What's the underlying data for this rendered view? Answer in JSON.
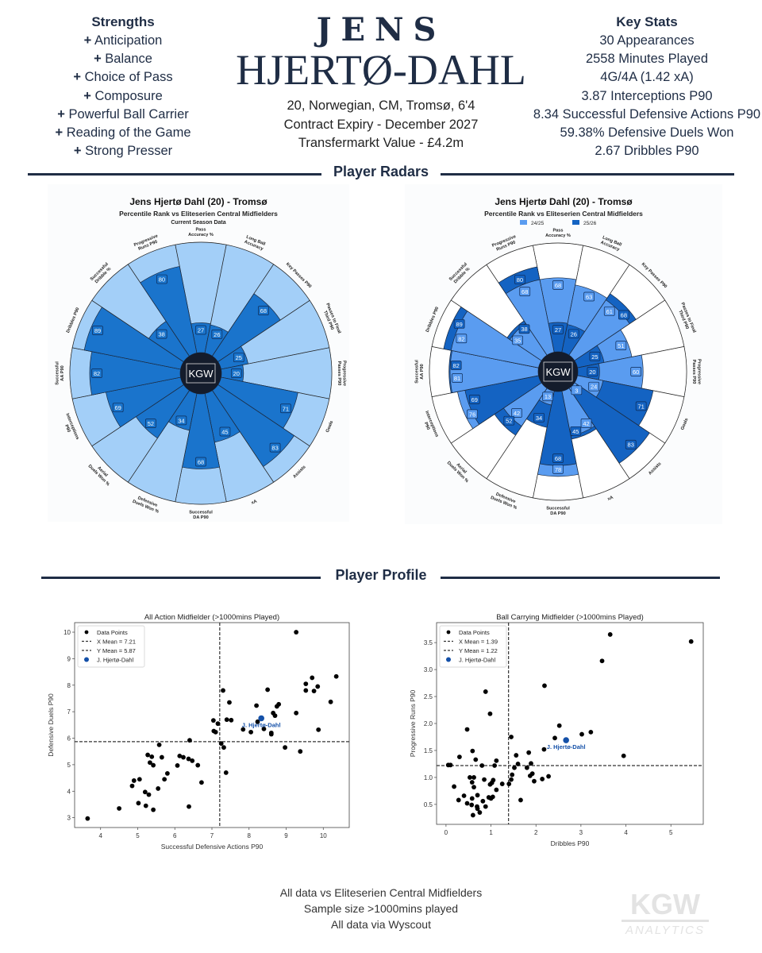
{
  "strengths": {
    "title": "Strengths",
    "items": [
      "Anticipation",
      "Balance",
      "Choice of Pass",
      "Composure",
      "Powerful Ball Carrier",
      "Reading of the Game",
      "Strong Presser"
    ],
    "prefix": "+"
  },
  "key_stats": {
    "title": "Key Stats",
    "items": [
      "30 Appearances",
      "2558 Minutes Played",
      "4G/4A (1.42 xA)",
      "3.87 Interceptions P90",
      "8.34 Successful Defensive Actions P90",
      "59.38% Defensive Duels Won",
      "2.67 Dribbles P90"
    ]
  },
  "player": {
    "first": "JENS",
    "last": "HJERTØ-DAHL",
    "info": [
      "20, Norwegian, CM, Tromsø, 6'4",
      "Contract Expiry - December 2027",
      "Transfermarkt Value - £4.2m"
    ]
  },
  "sections": {
    "radars": "Player Radars",
    "profile": "Player Profile"
  },
  "footer": [
    "All data vs Eliteserien Central Midfielders",
    "Sample size >1000mins played",
    "All data via Wyscout"
  ],
  "watermark": {
    "main": "KGW",
    "sub": "ANALYTICS"
  },
  "colors": {
    "navy": "#1f2d45",
    "radar_bg": "#a3cff8",
    "radar_dark": "#1a74cc",
    "season_2425": "#5a9cf0",
    "season_2526": "#1463c2",
    "player_dot": "#1450a8"
  },
  "chart_data": [
    {
      "type": "radar",
      "title": "Jens Hjertø Dahl (20) - Tromsø",
      "subtitle": "Percentile Rank vs Eliteserien Central Midfielders",
      "subtitle2": "Current Season Data",
      "logo": "KGW",
      "categories": [
        "Pass Accuracy %",
        "Long Ball Accuracy",
        "Key Passes P90",
        "Passes to Final Third P90",
        "Progressive Passes P90",
        "Goals",
        "Assists",
        "xA",
        "Successful DA P90",
        "Defensive Duels Won %",
        "Aerial Duels Won %",
        "Interceptions P90",
        "Successful AA P90",
        "Dribbles P90",
        "Successful Dribble %",
        "Progressive Runs P90"
      ],
      "series": [
        {
          "name": "Current Season",
          "values": [
            27,
            26,
            68,
            25,
            20,
            71,
            83,
            45,
            68,
            34,
            52,
            69,
            82,
            89,
            38,
            80
          ]
        }
      ],
      "range": [
        0,
        100
      ]
    },
    {
      "type": "radar",
      "title": "Jens Hjertø Dahl (20) - Tromsø",
      "subtitle": "Percentile Rank vs Eliteserien Central Midfielders",
      "logo": "KGW",
      "categories": [
        "Pass Accuracy %",
        "Long Ball Accuracy",
        "Key Passes P90",
        "Passes to Final Third P90",
        "Progressive Passes P90",
        "Goals",
        "Assists",
        "xA",
        "Successful DA P90",
        "Defensive Duels Won %",
        "Aerial Duels Won %",
        "Interceptions P90",
        "Successful AA P90",
        "Dribbles P90",
        "Successful Dribble %",
        "Progressive Runs P90"
      ],
      "series": [
        {
          "name": "24/25",
          "values": [
            68,
            63,
            61,
            51,
            60,
            24,
            3,
            42,
            78,
            13,
            42,
            76,
            81,
            82,
            35,
            68
          ]
        },
        {
          "name": "25/26",
          "values": [
            27,
            26,
            68,
            25,
            20,
            71,
            83,
            45,
            68,
            34,
            52,
            69,
            82,
            89,
            38,
            80
          ]
        }
      ],
      "legend": "top",
      "range": [
        0,
        100
      ]
    },
    {
      "type": "scatter",
      "title": "All Action Midfielder (>1000mins Played)",
      "xlabel": "Successful Defensive Actions P90",
      "ylabel": "Defensive Duels P90",
      "xlim": [
        3.3,
        10.7
      ],
      "ylim": [
        2.63,
        10.36
      ],
      "xticks": [
        4,
        5,
        6,
        7,
        8,
        9,
        10
      ],
      "yticks": [
        3,
        4,
        5,
        6,
        7,
        8,
        9,
        10
      ],
      "x_mean": 7.21,
      "y_mean": 5.87,
      "legend": [
        "Data Points",
        "X Mean = 7.21",
        "Y Mean = 5.87",
        "J. Hjertø-Dahl"
      ],
      "legend_position": "top-left",
      "player": {
        "label": "J. Hjertø-Dahl",
        "x": 8.33,
        "y": 6.75
      },
      "points": [
        [
          3.65,
          2.97
        ],
        [
          4.5,
          3.35
        ],
        [
          4.85,
          4.2
        ],
        [
          4.9,
          4.4
        ],
        [
          5.05,
          4.45
        ],
        [
          5.2,
          3.97
        ],
        [
          5.3,
          3.87
        ],
        [
          5.02,
          3.55
        ],
        [
          5.22,
          3.45
        ],
        [
          5.42,
          3.3
        ],
        [
          5.27,
          5.37
        ],
        [
          5.38,
          5.3
        ],
        [
          5.33,
          5.08
        ],
        [
          5.42,
          4.98
        ],
        [
          5.58,
          5.75
        ],
        [
          5.65,
          5.28
        ],
        [
          5.55,
          4.1
        ],
        [
          5.72,
          4.45
        ],
        [
          5.8,
          4.67
        ],
        [
          6.07,
          4.97
        ],
        [
          6.13,
          5.33
        ],
        [
          6.23,
          5.28
        ],
        [
          6.37,
          5.22
        ],
        [
          6.47,
          5.15
        ],
        [
          6.4,
          5.92
        ],
        [
          6.62,
          4.98
        ],
        [
          6.72,
          4.33
        ],
        [
          6.38,
          3.42
        ],
        [
          7.04,
          6.67
        ],
        [
          7.05,
          6.27
        ],
        [
          7.1,
          6.23
        ],
        [
          7.16,
          6.55
        ],
        [
          7.25,
          5.8
        ],
        [
          7.3,
          7.8
        ],
        [
          7.32,
          5.65
        ],
        [
          7.38,
          4.7
        ],
        [
          7.4,
          6.7
        ],
        [
          7.47,
          7.35
        ],
        [
          7.52,
          6.68
        ],
        [
          7.84,
          6.33
        ],
        [
          8.05,
          6.23
        ],
        [
          8.2,
          7.23
        ],
        [
          8.23,
          6.62
        ],
        [
          8.4,
          6.35
        ],
        [
          8.5,
          7.83
        ],
        [
          8.6,
          6.2
        ],
        [
          8.6,
          6.15
        ],
        [
          8.65,
          6.95
        ],
        [
          8.7,
          6.85
        ],
        [
          8.75,
          7.2
        ],
        [
          8.8,
          7.28
        ],
        [
          8.97,
          5.65
        ],
        [
          9.27,
          6.95
        ],
        [
          9.27,
          10.0
        ],
        [
          9.38,
          5.5
        ],
        [
          9.53,
          8.05
        ],
        [
          9.53,
          7.8
        ],
        [
          9.7,
          8.28
        ],
        [
          9.75,
          7.78
        ],
        [
          9.85,
          7.95
        ],
        [
          9.87,
          6.32
        ],
        [
          10.2,
          7.37
        ],
        [
          10.35,
          8.33
        ]
      ]
    },
    {
      "type": "scatter",
      "title": "Ball Carrying Midfielder (>1000mins Played)",
      "xlabel": "Dribbles P90",
      "ylabel": "Progressive Runs P90",
      "xlim": [
        -0.21,
        5.72
      ],
      "ylim": [
        0.13,
        3.87
      ],
      "xticks": [
        0,
        1,
        2,
        3,
        4,
        5
      ],
      "yticks": [
        0.5,
        1.0,
        1.5,
        2.0,
        2.5,
        3.0,
        3.5
      ],
      "x_mean": 1.39,
      "y_mean": 1.22,
      "legend": [
        "Data Points",
        "X Mean = 1.39",
        "Y Mean = 1.22",
        "J. Hjertø-Dahl"
      ],
      "legend_position": "top-left",
      "player": {
        "label": "J. Hjertø-Dahl",
        "x": 2.67,
        "y": 1.69
      },
      "points": [
        [
          0.05,
          1.23
        ],
        [
          0.1,
          1.23
        ],
        [
          0.18,
          0.83
        ],
        [
          0.28,
          0.58
        ],
        [
          0.3,
          1.38
        ],
        [
          0.4,
          0.66
        ],
        [
          0.47,
          0.52
        ],
        [
          0.47,
          1.89
        ],
        [
          0.53,
          1.0
        ],
        [
          0.57,
          0.49
        ],
        [
          0.58,
          0.91
        ],
        [
          0.58,
          0.61
        ],
        [
          0.59,
          1.49
        ],
        [
          0.6,
          0.3
        ],
        [
          0.62,
          1.0
        ],
        [
          0.62,
          0.82
        ],
        [
          0.66,
          1.33
        ],
        [
          0.69,
          0.46
        ],
        [
          0.7,
          0.42
        ],
        [
          0.7,
          0.67
        ],
        [
          0.75,
          0.35
        ],
        [
          0.8,
          1.22
        ],
        [
          0.82,
          0.56
        ],
        [
          0.85,
          0.96
        ],
        [
          0.88,
          0.46
        ],
        [
          0.88,
          2.59
        ],
        [
          0.95,
          0.63
        ],
        [
          0.98,
          0.87
        ],
        [
          0.98,
          2.18
        ],
        [
          1.0,
          0.61
        ],
        [
          1.02,
          0.9
        ],
        [
          1.04,
          0.64
        ],
        [
          1.05,
          0.95
        ],
        [
          1.08,
          1.22
        ],
        [
          1.12,
          0.77
        ],
        [
          1.12,
          1.31
        ],
        [
          1.25,
          0.88
        ],
        [
          1.4,
          0.88
        ],
        [
          1.45,
          0.96
        ],
        [
          1.45,
          1.75
        ],
        [
          1.47,
          1.05
        ],
        [
          1.52,
          1.18
        ],
        [
          1.56,
          1.41
        ],
        [
          1.6,
          1.25
        ],
        [
          1.66,
          0.58
        ],
        [
          1.8,
          1.18
        ],
        [
          1.84,
          1.46
        ],
        [
          1.87,
          1.03
        ],
        [
          1.89,
          1.26
        ],
        [
          1.92,
          1.07
        ],
        [
          1.96,
          0.93
        ],
        [
          2.14,
          0.97
        ],
        [
          2.18,
          1.52
        ],
        [
          2.19,
          2.7
        ],
        [
          2.28,
          1.02
        ],
        [
          2.42,
          1.73
        ],
        [
          2.52,
          1.96
        ],
        [
          3.02,
          1.8
        ],
        [
          3.22,
          1.84
        ],
        [
          3.47,
          3.16
        ],
        [
          3.65,
          3.65
        ],
        [
          3.95,
          1.4
        ],
        [
          5.45,
          3.52
        ]
      ]
    }
  ]
}
